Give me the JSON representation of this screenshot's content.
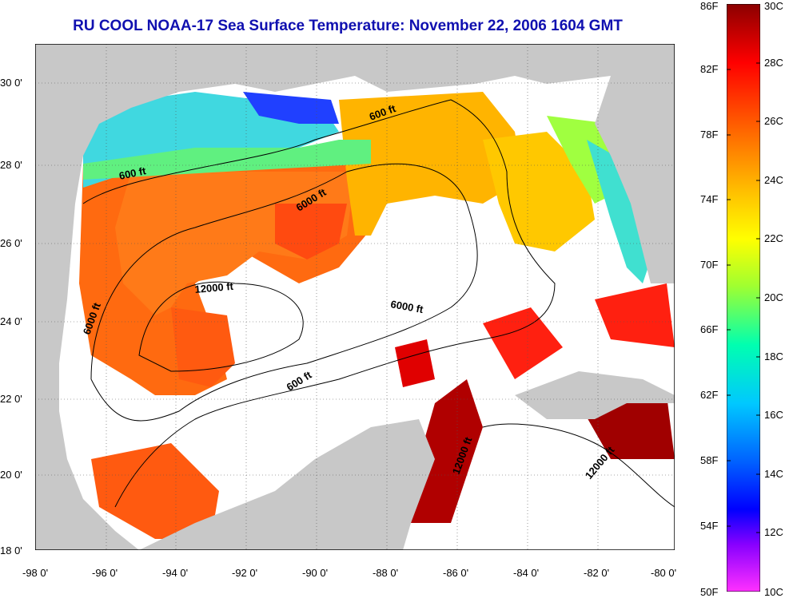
{
  "title": "RU COOL  NOAA-17  Sea Surface Temperature:  November 22, 2006 1604 GMT",
  "map": {
    "lat_ticks": [
      "30 0'",
      "28 0'",
      "26 0'",
      "24 0'",
      "22 0'",
      "20 0'",
      "18 0'"
    ],
    "lon_ticks": [
      "-98 0'",
      "-96 0'",
      "-94 0'",
      "-92 0'",
      "-90 0'",
      "-88 0'",
      "-86 0'",
      "-84 0'",
      "-82 0'",
      "-80 0'"
    ],
    "land_color": "#c8c8c8",
    "cloud_color": "#ffffff",
    "contour_labels": [
      {
        "id": "c600-north",
        "text": "600 ft"
      },
      {
        "id": "c600-west",
        "text": "600 ft"
      },
      {
        "id": "c6000-north",
        "text": "6000 ft"
      },
      {
        "id": "c12000-west",
        "text": "12000 ft"
      },
      {
        "id": "c6000-center",
        "text": "6000 ft"
      },
      {
        "id": "c6000-west",
        "text": "6000 ft"
      },
      {
        "id": "c600-center",
        "text": "600 ft"
      },
      {
        "id": "c12000-yucatan",
        "text": "12000 ft"
      },
      {
        "id": "c12000-east",
        "text": "12000 ft"
      }
    ]
  },
  "colorbar": {
    "fahrenheit": [
      "86F",
      "82F",
      "78F",
      "74F",
      "70F",
      "66F",
      "62F",
      "58F",
      "54F",
      "50F"
    ],
    "celsius": [
      "30C",
      "28C",
      "26C",
      "24C",
      "22C",
      "20C",
      "18C",
      "16C",
      "14C",
      "12C",
      "10C"
    ],
    "colors": [
      "#8b0000",
      "#ff0000",
      "#ff6a00",
      "#ffc000",
      "#ffff00",
      "#a0ff30",
      "#00ffb0",
      "#00c8ff",
      "#0060ff",
      "#0000ff",
      "#8800ff",
      "#ff30ff"
    ]
  }
}
